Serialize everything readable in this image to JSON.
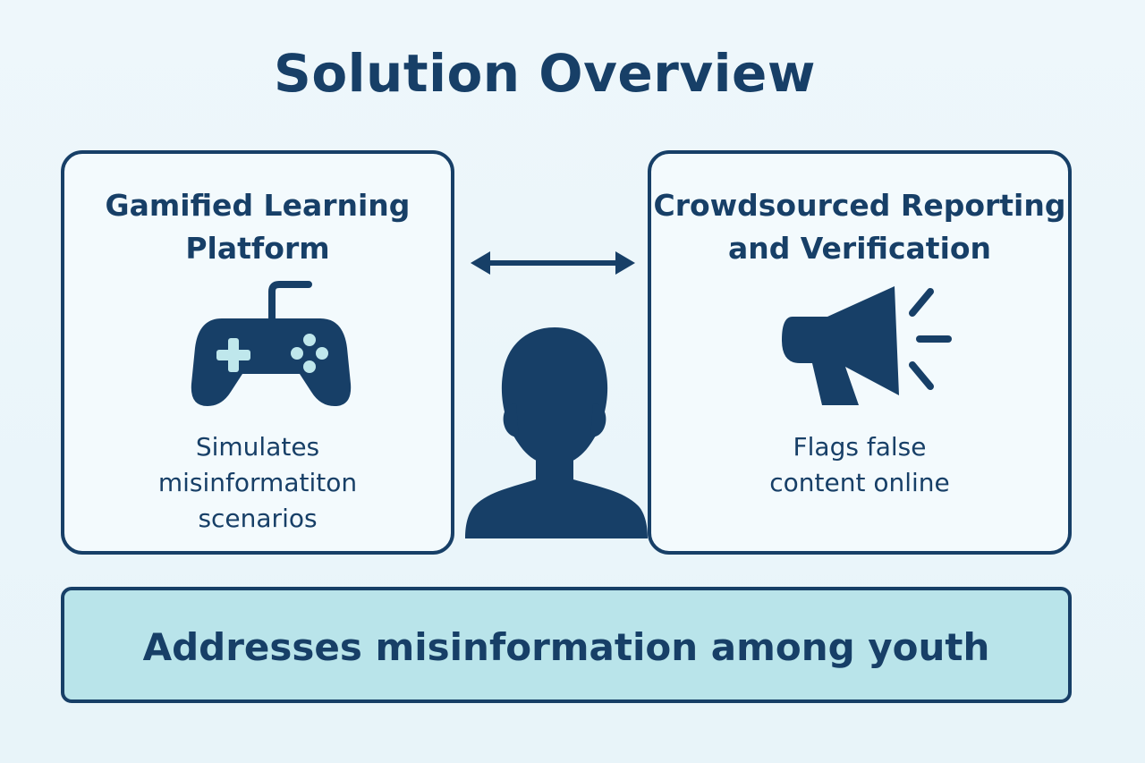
{
  "page": {
    "title": "Solution Overview"
  },
  "left_card": {
    "title_line_1": "Gamified Learning",
    "title_line_2": "Platform",
    "body_line_1": "Simulates",
    "body_line_2": "misinformatiton",
    "body_line_3": "scenarios",
    "icon": "gamepad-icon"
  },
  "right_card": {
    "title_line_1": "Crowdsourced Reporting",
    "title_line_2": "and Verification",
    "body_line_1": "Flags false",
    "body_line_2": "content online",
    "icon": "megaphone-icon"
  },
  "connector": {
    "icon": "double-arrow-icon"
  },
  "center_icon": {
    "icon": "person-silhouette-icon"
  },
  "banner": {
    "text": "Addresses misinformation among youth"
  },
  "colors": {
    "background": "#eef7fb",
    "primary": "#173f67",
    "card_fill": "#f3fafd",
    "banner_fill": "#b9e4ea",
    "accent_light": "#bfe7ec"
  }
}
